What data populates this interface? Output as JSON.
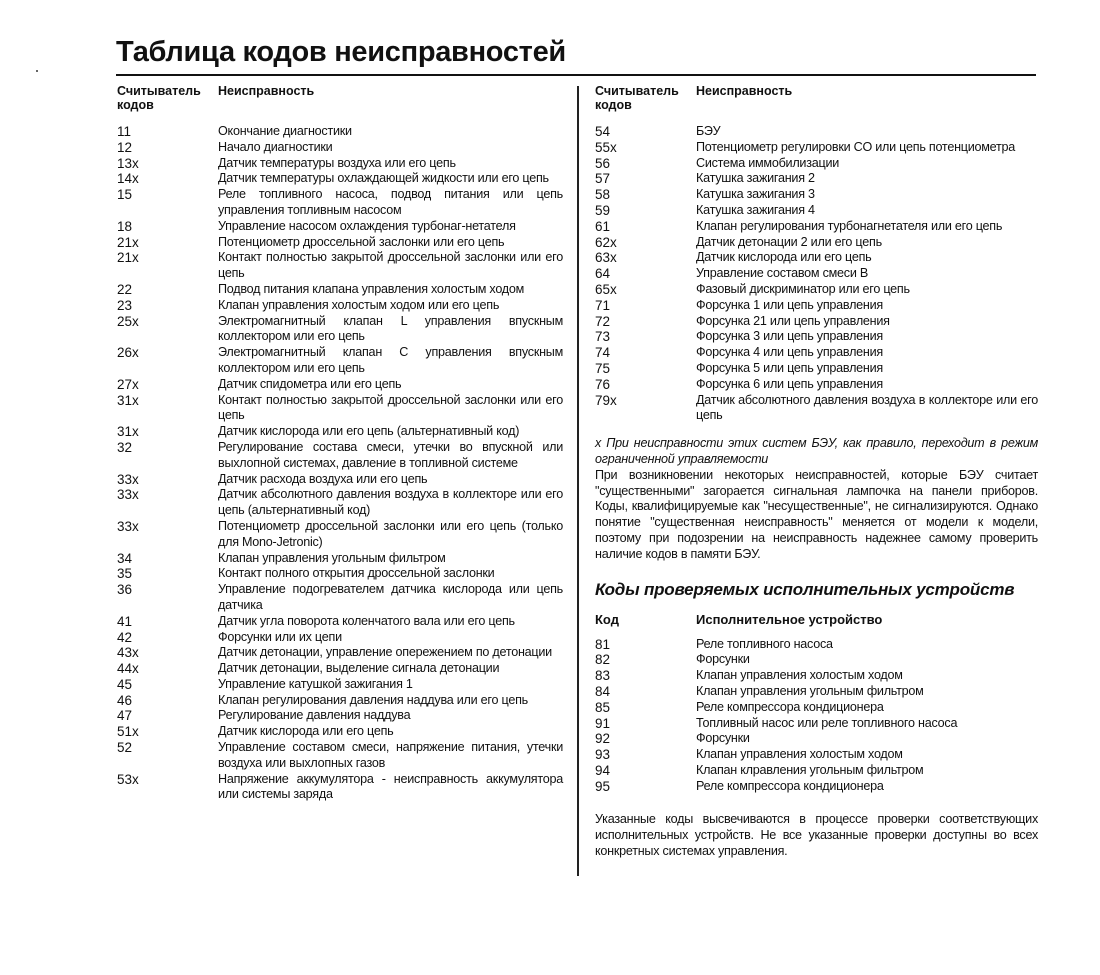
{
  "title": "Таблица кодов неисправностей",
  "headers": {
    "code": "Считыватель кодов",
    "fault": "Неисправность"
  },
  "left_rows": [
    {
      "code": "11",
      "desc": "Окончание диагностики"
    },
    {
      "code": "12",
      "desc": "Начало диагностики"
    },
    {
      "code": "13x",
      "desc": "Датчик температуры воздуха или его цепь"
    },
    {
      "code": "14x",
      "desc": "Датчик температуры охлаждающей жидкости или его цепь"
    },
    {
      "code": "15",
      "desc": "Реле топливного насоса, подвод питания или цепь управления топливным насосом"
    },
    {
      "code": "18",
      "desc": "Управление насосом охлаждения турбонаг-нетателя"
    },
    {
      "code": "21x",
      "desc": "Потенциометр дроссельной заслонки или его цепь"
    },
    {
      "code": "21x",
      "desc": "Контакт полностью закрытой дроссельной заслонки или его цепь"
    },
    {
      "code": "22",
      "desc": "Подвод питания клапана управления холостым ходом"
    },
    {
      "code": "23",
      "desc": "Клапан управления холостым ходом или его цепь"
    },
    {
      "code": "25x",
      "desc": "Электромагнитный клапан L управления впускным коллектором или его цепь"
    },
    {
      "code": "26x",
      "desc": "Электромагнитный клапан C управления впускным коллектором или его цепь"
    },
    {
      "code": "27x",
      "desc": "Датчик спидометра или его цепь"
    },
    {
      "code": "31x",
      "desc": "Контакт полностью закрытой дроссельной заслонки или его цепь"
    },
    {
      "code": "31x",
      "desc": "Датчик кислорода или его цепь (альтернативный код)"
    },
    {
      "code": "32",
      "desc": "Регулирование состава смеси, утечки во впускной или выхлопной системах, давление в топливной системе"
    },
    {
      "code": "33x",
      "desc": "Датчик расхода воздуха или его цепь"
    },
    {
      "code": "33x",
      "desc": "Датчик абсолютного давления воздуха в коллекторе или его цепь (альтернативный код)"
    },
    {
      "code": "33x",
      "desc": "Потенциометр дроссельной заслонки или его цепь (только для Mono-Jetronic)"
    },
    {
      "code": "34",
      "desc": "Клапан управления угольным фильтром"
    },
    {
      "code": "35",
      "desc": "Контакт полного открытия дроссельной заслонки"
    },
    {
      "code": "36",
      "desc": "Управление подогревателем датчика кислорода или цепь датчика"
    },
    {
      "code": "41",
      "desc": "Датчик угла поворота коленчатого вала или его цепь"
    },
    {
      "code": "42",
      "desc": "Форсунки или их цепи"
    },
    {
      "code": "43x",
      "desc": "Датчик детонации, управление опережением по детонации"
    },
    {
      "code": "44x",
      "desc": "Датчик детонации, выделение сигнала детонации"
    },
    {
      "code": "45",
      "desc": "Управление катушкой зажигания 1"
    },
    {
      "code": "46",
      "desc": "Клапан регулирования давления наддува или его цепь"
    },
    {
      "code": "47",
      "desc": "Регулирование давления наддува"
    },
    {
      "code": "51x",
      "desc": "Датчик кислорода или его цепь"
    },
    {
      "code": "52",
      "desc": "Управление составом смеси, напряжение питания, утечки воздуха или выхлопных газов"
    },
    {
      "code": "53x",
      "desc": "Напряжение аккумулятора - неисправность аккумулятора или системы заряда"
    }
  ],
  "right_rows": [
    {
      "code": "54",
      "desc": "БЭУ"
    },
    {
      "code": "55x",
      "desc": "Потенциометр регулировки CO или цепь потенциометра"
    },
    {
      "code": "56",
      "desc": "Система иммобилизации"
    },
    {
      "code": "57",
      "desc": "Катушка зажигания 2"
    },
    {
      "code": "58",
      "desc": "Катушка зажигания 3"
    },
    {
      "code": "59",
      "desc": "Катушка зажигания 4"
    },
    {
      "code": "61",
      "desc": "Клапан регулирования турбонагнетателя или его цепь"
    },
    {
      "code": "62x",
      "desc": "Датчик детонации 2 или его цепь"
    },
    {
      "code": "63x",
      "desc": "Датчик кислорода или его цепь"
    },
    {
      "code": "64",
      "desc": "Управление составом смеси B"
    },
    {
      "code": "65x",
      "desc": "Фазовый дискриминатор или его цепь"
    },
    {
      "code": "71",
      "desc": "Форсунка 1 или цепь управления"
    },
    {
      "code": "72",
      "desc": "Форсунка 21 или цепь управления"
    },
    {
      "code": "73",
      "desc": "Форсунка 3 или цепь управления"
    },
    {
      "code": "74",
      "desc": "Форсунка 4 или цепь управления"
    },
    {
      "code": "75",
      "desc": "Форсунка 5 или цепь управления"
    },
    {
      "code": "76",
      "desc": "Форсунка 6 или цепь управления"
    },
    {
      "code": "79x",
      "desc": "Датчик абсолютного давления воздуха в коллекторе или его цепь"
    }
  ],
  "footnote": "x При неисправности этих систем БЭУ, как правило, переходит в режим ограниченной управляемости",
  "paragraph": "При возникновении некоторых неисправностей, которые БЭУ считает \"существенными\" загорается сигнальная лампочка на панели приборов. Коды, квалифицируемые как \"несущественные\", не сигнализируются. Однако понятие \"существенная неисправность\" меняется от модели к модели, поэтому при подозрении на неисправность надежнее самому проверить наличие кодов в памяти БЭУ.",
  "actuators": {
    "heading": "Коды проверяемых исполнительных устройств",
    "headers": {
      "code": "Код",
      "device": "Исполнительное устройство"
    },
    "rows": [
      {
        "code": "81",
        "desc": "Реле топливного насоса"
      },
      {
        "code": "82",
        "desc": "Форсунки"
      },
      {
        "code": "83",
        "desc": "Клапан управления холостым ходом"
      },
      {
        "code": "84",
        "desc": "Клапан управления угольным фильтром"
      },
      {
        "code": "85",
        "desc": "Реле компрессора кондиционера"
      },
      {
        "code": "91",
        "desc": "Топливный насос или реле топливного насоса"
      },
      {
        "code": "92",
        "desc": "Форсунки"
      },
      {
        "code": "93",
        "desc": "Клапан управления холостым ходом"
      },
      {
        "code": "94",
        "desc": "Клапан клравления угольным фильтром"
      },
      {
        "code": "95",
        "desc": "Реле компрессора кондиционера"
      }
    ],
    "note": "Указанные коды высвечиваются в процессе проверки соответствующих исполнительных устройств. Не все указанные проверки доступны во всех конкретных системах управления."
  }
}
